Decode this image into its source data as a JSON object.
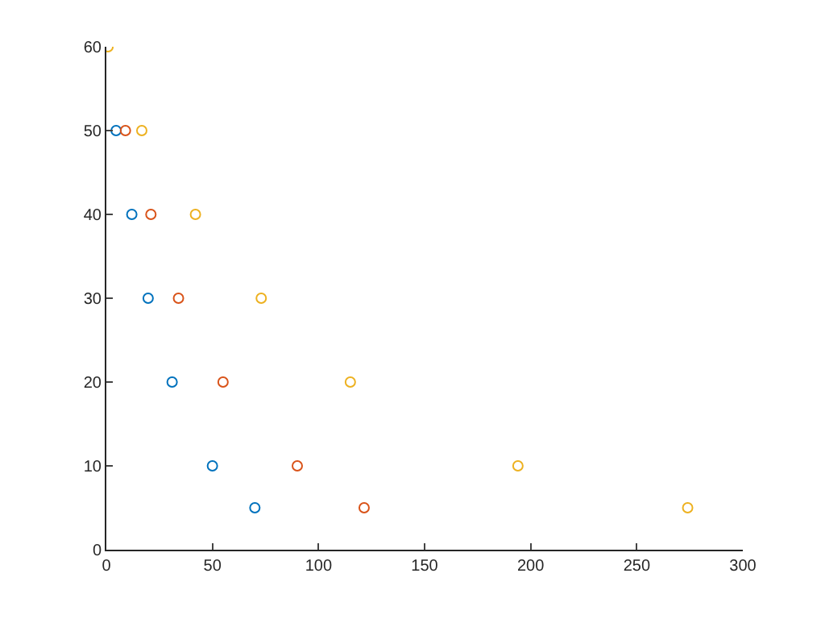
{
  "chart_data": {
    "type": "scatter",
    "marker": "circle",
    "xlim": [
      0,
      300
    ],
    "xticks": [
      0,
      50,
      100,
      150,
      200,
      250,
      300
    ],
    "ylim": [
      0,
      60
    ],
    "yticks": [
      0,
      10,
      20,
      30,
      40,
      50,
      60
    ],
    "series": [
      {
        "color": "#0072bd",
        "x": [
          4.6,
          12,
          19.7,
          31,
          50,
          70
        ],
        "values": [
          50,
          40,
          30,
          20,
          10,
          5
        ]
      },
      {
        "color": "#d95319",
        "x": [
          9,
          21,
          34,
          55,
          90,
          121.5
        ],
        "values": [
          50,
          40,
          30,
          20,
          10,
          5
        ]
      },
      {
        "color": "#edb120",
        "x": [
          0.8,
          16.7,
          42,
          73,
          115,
          194,
          274
        ],
        "values": [
          60,
          50,
          40,
          30,
          20,
          10,
          5
        ]
      }
    ]
  }
}
